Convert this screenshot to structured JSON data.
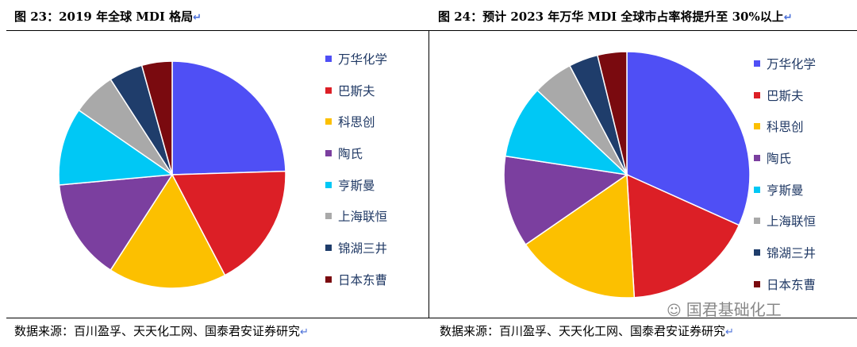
{
  "chart_data": [
    {
      "type": "pie",
      "title": "图 23：2019 年全球 MDI 格局",
      "categories": [
        "万华化学",
        "巴斯夫",
        "科思创",
        "陶氏",
        "亨斯曼",
        "上海联恒",
        "锦湖三井",
        "日本东曹"
      ],
      "values": [
        25.5,
        18.5,
        17.5,
        15.0,
        11.5,
        6.5,
        5.0,
        4.5
      ],
      "colors": [
        "#4f4ff5",
        "#dc1f26",
        "#fcc000",
        "#7b3f9f",
        "#00c8f5",
        "#a9a9a9",
        "#1f3d6b",
        "#7a0a0f"
      ],
      "source": "数据来源：百川盈孚、天天化工网、国泰君安证券研究"
    },
    {
      "type": "pie",
      "title": "图 24：预计 2023 年万华 MDI 全球市占率将提升至 30%以上",
      "categories": [
        "万华化学",
        "巴斯夫",
        "科思创",
        "陶氏",
        "亨斯曼",
        "上海联恒",
        "锦湖三井",
        "日本东曹"
      ],
      "values": [
        33.0,
        18.0,
        17.0,
        12.5,
        10.0,
        5.5,
        4.0,
        4.0
      ],
      "colors": [
        "#4f4ff5",
        "#dc1f26",
        "#fcc000",
        "#7b3f9f",
        "#00c8f5",
        "#a9a9a9",
        "#1f3d6b",
        "#7a0a0f"
      ],
      "source": "数据来源：百川盈孚、天天化工网、国泰君安证券研究"
    }
  ],
  "return_mark": "↵",
  "watermark": "国君基础化工"
}
